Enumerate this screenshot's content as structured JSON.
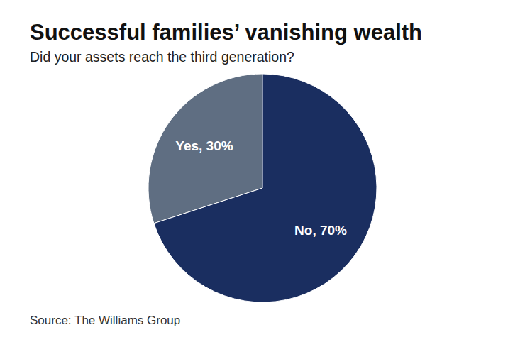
{
  "chart_data": {
    "type": "pie",
    "title": "Successful families’ vanishing wealth",
    "subtitle": "Did your assets reach the third generation?",
    "source": "Source: The Williams Group",
    "categories": [
      "Yes",
      "No"
    ],
    "values": [
      30,
      70
    ],
    "value_labels": [
      "Yes, 30%",
      "No, 70%"
    ],
    "colors": [
      "#5f6e82",
      "#1a2e60"
    ],
    "data_labels": true
  }
}
